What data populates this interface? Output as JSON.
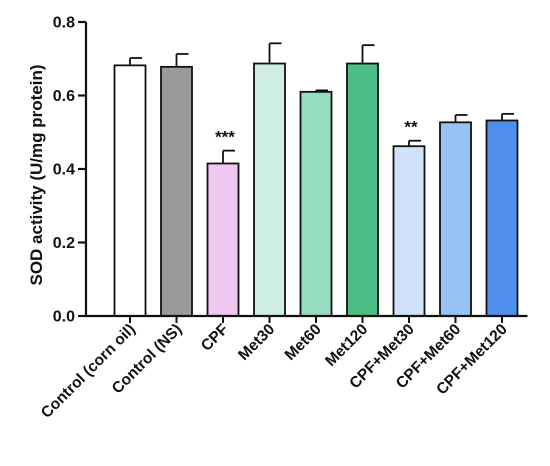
{
  "chart_data": {
    "type": "bar",
    "title": "",
    "xlabel": "",
    "ylabel": "SOD activity (U/mg protein)",
    "ylim": [
      0,
      0.8
    ],
    "yticks": [
      "0.0",
      "0.2",
      "0.4",
      "0.6",
      "0.8"
    ],
    "grid": false,
    "categories": [
      "Control (corn oil)",
      "Control (NS)",
      "CPF",
      "Met30",
      "Met60",
      "Met120",
      "CPF+Met30",
      "CPF+Met60",
      "CPF+Met120"
    ],
    "values": [
      0.682,
      0.678,
      0.415,
      0.687,
      0.61,
      0.687,
      0.462,
      0.527,
      0.532
    ],
    "errors": [
      0.02,
      0.035,
      0.035,
      0.055,
      0.004,
      0.05,
      0.015,
      0.02,
      0.018
    ],
    "annotations": [
      "",
      "",
      "***",
      "",
      "",
      "",
      "**",
      "",
      ""
    ],
    "colors": [
      "#ffffff",
      "#9a9a9c",
      "#efc8f2",
      "#cdeee0",
      "#96dcc0",
      "#4dbf86",
      "#cfe2f9",
      "#99c2f4",
      "#4f8eea"
    ]
  }
}
